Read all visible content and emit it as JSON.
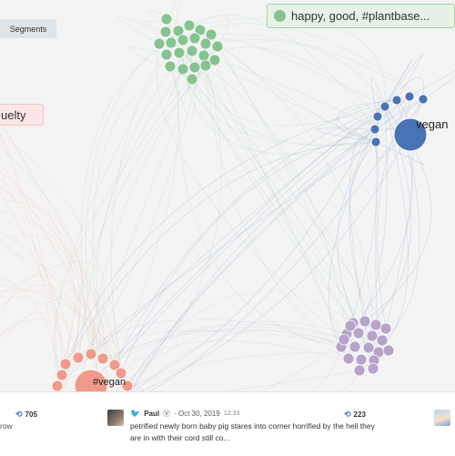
{
  "toolbar": {
    "segments_label": "Segments"
  },
  "segments": [
    {
      "id": "green",
      "label": "happy, good, #plantbase...",
      "color": "#86c390"
    },
    {
      "id": "red",
      "label": "uelty",
      "color": "#ef9a8a"
    },
    {
      "id": "blue",
      "label": "vegan",
      "color": "#4a73b5"
    },
    {
      "id": "purple",
      "label": "",
      "color": "#b7a2c9"
    }
  ],
  "node_labels": {
    "blue_hub": "vegan",
    "red_hub": "#vegan"
  },
  "tweets": [
    {
      "retweets": "705",
      "text_fragment": "row"
    },
    {
      "author": "Paul",
      "verified_icon": "verified-icon",
      "date": "· Oct 30, 2019",
      "time": "12:33",
      "text": "petrified newly born baby pig stares into corner horrified by the hell they are in with their cord still co...",
      "retweets": "223"
    }
  ],
  "colors": {
    "background": "#f4f4f4",
    "twitter_blue": "#1da1f2",
    "retweet_blue": "#3a7bd5"
  }
}
